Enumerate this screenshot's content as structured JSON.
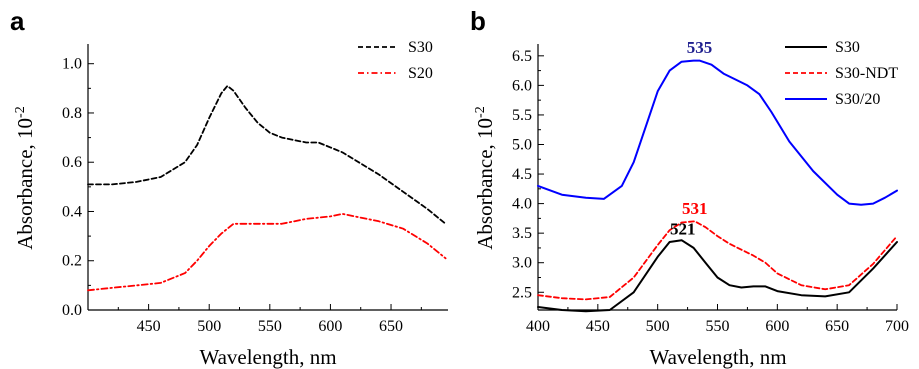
{
  "chart_data": [
    {
      "panel": "a",
      "type": "line",
      "xlabel": "Wavelength, nm",
      "ylabel": "Absorbance, 10",
      "ylabel_exponent": "-2",
      "xlim": [
        400,
        697
      ],
      "ylim": [
        0.0,
        1.08
      ],
      "xticks": [
        450,
        500,
        550,
        600,
        650
      ],
      "xtick_labels": [
        "450",
        "500",
        "550",
        "600",
        "650"
      ],
      "yticks": [
        0.0,
        0.2,
        0.4,
        0.6,
        0.8,
        1.0
      ],
      "ytick_labels": [
        "0.0",
        "0.2",
        "0.4",
        "0.6",
        "0.8",
        "1.0"
      ],
      "legend_position": "top-right",
      "series": [
        {
          "name": "S30",
          "color": "#000000",
          "dash": "dashed",
          "x": [
            400,
            420,
            440,
            460,
            480,
            490,
            500,
            510,
            515,
            520,
            530,
            540,
            550,
            560,
            570,
            580,
            590,
            600,
            610,
            620,
            640,
            660,
            680,
            695
          ],
          "y": [
            0.51,
            0.51,
            0.52,
            0.54,
            0.6,
            0.67,
            0.78,
            0.88,
            0.91,
            0.89,
            0.82,
            0.76,
            0.72,
            0.7,
            0.69,
            0.68,
            0.68,
            0.66,
            0.64,
            0.61,
            0.55,
            0.48,
            0.41,
            0.35
          ]
        },
        {
          "name": "S20",
          "color": "#ff0000",
          "dash": "dashdot",
          "x": [
            400,
            420,
            440,
            460,
            480,
            490,
            500,
            510,
            520,
            530,
            540,
            560,
            580,
            600,
            610,
            620,
            640,
            660,
            680,
            695
          ],
          "y": [
            0.08,
            0.09,
            0.1,
            0.11,
            0.15,
            0.2,
            0.26,
            0.31,
            0.35,
            0.35,
            0.35,
            0.35,
            0.37,
            0.38,
            0.39,
            0.38,
            0.36,
            0.33,
            0.27,
            0.21
          ]
        }
      ]
    },
    {
      "panel": "b",
      "type": "line",
      "xlabel": "Wavelength, nm",
      "ylabel": "Absorbance, 10",
      "ylabel_exponent": "-2",
      "xlim": [
        400,
        700
      ],
      "ylim": [
        2.2,
        6.7
      ],
      "xticks": [
        400,
        450,
        500,
        550,
        600,
        650,
        700
      ],
      "xtick_labels": [
        "400",
        "450",
        "500",
        "550",
        "600",
        "650",
        "700"
      ],
      "yticks": [
        2.5,
        3.0,
        3.5,
        4.0,
        4.5,
        5.0,
        5.5,
        6.0,
        6.5
      ],
      "ytick_labels": [
        "2.5",
        "3.0",
        "3.5",
        "4.0",
        "4.5",
        "5.0",
        "5.5",
        "6.0",
        "6.5"
      ],
      "legend_position": "top-right",
      "annotations": [
        {
          "text": "535",
          "x": 535,
          "y": 6.55,
          "color": "#1f1f8f"
        },
        {
          "text": "531",
          "x": 531,
          "y": 3.82,
          "color": "#ff0000"
        },
        {
          "text": "521",
          "x": 521,
          "y": 3.48,
          "color": "#000000"
        }
      ],
      "series": [
        {
          "name": "S30",
          "color": "#000000",
          "dash": "solid",
          "x": [
            400,
            420,
            440,
            460,
            480,
            500,
            510,
            520,
            530,
            540,
            550,
            560,
            570,
            580,
            590,
            600,
            620,
            640,
            660,
            680,
            700
          ],
          "y": [
            2.25,
            2.2,
            2.18,
            2.2,
            2.5,
            3.1,
            3.35,
            3.38,
            3.25,
            3.0,
            2.75,
            2.62,
            2.58,
            2.6,
            2.6,
            2.52,
            2.45,
            2.43,
            2.5,
            2.9,
            3.35
          ]
        },
        {
          "name": "S30-NDT",
          "color": "#ff0000",
          "dash": "dashed",
          "x": [
            400,
            420,
            440,
            460,
            480,
            500,
            510,
            520,
            531,
            540,
            550,
            560,
            570,
            580,
            590,
            600,
            620,
            640,
            660,
            680,
            700
          ],
          "y": [
            2.45,
            2.4,
            2.38,
            2.42,
            2.75,
            3.3,
            3.55,
            3.68,
            3.7,
            3.6,
            3.45,
            3.32,
            3.22,
            3.12,
            3.0,
            2.82,
            2.62,
            2.55,
            2.62,
            2.98,
            3.45
          ]
        },
        {
          "name": "S30/20",
          "color": "#0000ff",
          "dash": "solid",
          "x": [
            400,
            420,
            440,
            455,
            470,
            480,
            490,
            500,
            510,
            520,
            530,
            535,
            545,
            555,
            565,
            575,
            585,
            595,
            610,
            630,
            650,
            660,
            670,
            680,
            690,
            700
          ],
          "y": [
            4.3,
            4.15,
            4.1,
            4.08,
            4.3,
            4.7,
            5.3,
            5.9,
            6.25,
            6.4,
            6.42,
            6.42,
            6.35,
            6.2,
            6.1,
            6.0,
            5.85,
            5.55,
            5.05,
            4.55,
            4.15,
            4.0,
            3.98,
            4.0,
            4.1,
            4.22
          ]
        }
      ]
    }
  ]
}
